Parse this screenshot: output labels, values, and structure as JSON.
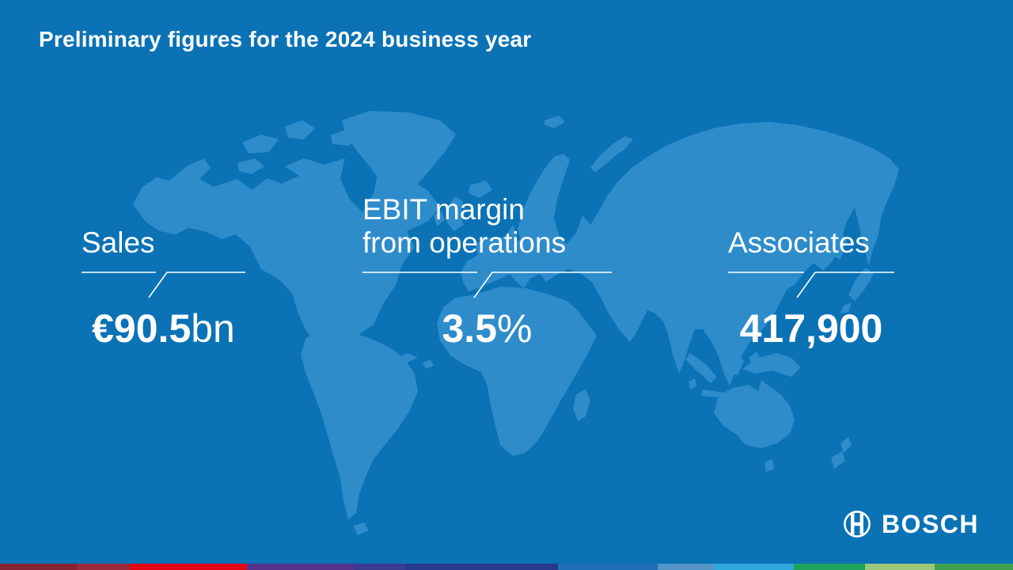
{
  "colors": {
    "background": "#0a72b5",
    "map": "#2e8ccb",
    "text": "#ffffff"
  },
  "header": {
    "title": "Preliminary figures for the 2024 business year"
  },
  "metrics": [
    {
      "label_line1": "Sales",
      "label_line2": "",
      "value_strong": "€90.5",
      "value_light": "bn"
    },
    {
      "label_line1": "EBIT margin",
      "label_line2": "from operations",
      "value_strong": "3.5",
      "value_light": "%"
    },
    {
      "label_line1": "Associates",
      "label_line2": "",
      "value_strong": "417,900",
      "value_light": ""
    }
  ],
  "logo": {
    "text": "BOSCH",
    "symbol_icon": "bosch-anchor-armature"
  },
  "footer": {
    "stripe": [
      {
        "color": "#862433",
        "width": 7.6
      },
      {
        "color": "#9d2a3a",
        "width": 5.2
      },
      {
        "color": "#e30613",
        "width": 11.6
      },
      {
        "color": "#55338f",
        "width": 10.5
      },
      {
        "color": "#3a3b90",
        "width": 5.1
      },
      {
        "color": "#28388c",
        "width": 15.1
      },
      {
        "color": "#1e6fb8",
        "width": 9.8
      },
      {
        "color": "#5494c7",
        "width": 5.6
      },
      {
        "color": "#2fa8de",
        "width": 7.9
      },
      {
        "color": "#1fa25c",
        "width": 7.0
      },
      {
        "color": "#9ac878",
        "width": 6.9
      },
      {
        "color": "#41a04e",
        "width": 7.7
      }
    ]
  }
}
